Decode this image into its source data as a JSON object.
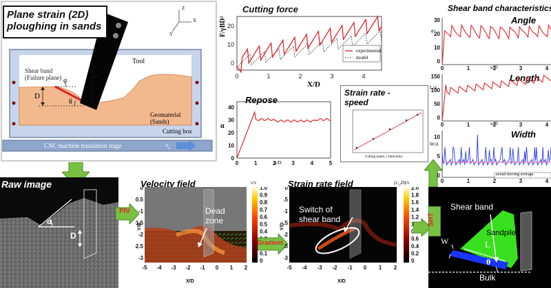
{
  "schematic": {
    "title_line1": "Plane strain (2D)",
    "title_line2": "ploughing in sands",
    "shear_band_label1": "Shear band",
    "shear_band_label2": "(Failure plane)",
    "alpha": "α",
    "beta": "β",
    "theta": "θ",
    "depth": "D",
    "tool": "Tool",
    "geomaterial1": "Geomaterial",
    "geomaterial2": "(Sands)",
    "cutting_box": "Cutting box",
    "stage": "CNC machine translation stage",
    "velocity": "v",
    "velocity_sub": "c",
    "axis_z": "Z",
    "axis_x": "X",
    "axis_y": "Y"
  },
  "cutting_force": {
    "title": "Cutting force",
    "ylabel": "F/γBD²",
    "xlabel": "X/D",
    "legend": [
      "experimental",
      "model"
    ],
    "yticks": [
      "0",
      "10",
      "20"
    ],
    "xticks": [
      "0",
      "1",
      "2",
      "3",
      "4"
    ]
  },
  "repose": {
    "title": "Repose",
    "ylabel": "α",
    "xlabel": "u/D",
    "yticks": [
      "0",
      "10",
      "20",
      "30",
      "40"
    ],
    "xticks": [
      "0",
      "1",
      "2",
      "3",
      "4",
      "5"
    ]
  },
  "strain_speed": {
    "title_line1": "Strain rate -",
    "title_line2": "speed",
    "xlabel": "Cutting speed, v (mm/min)"
  },
  "shear_band": {
    "title": "Shear band characteristics",
    "angle": "Angle",
    "length": "Length",
    "width": "Width",
    "angle_ylabel": "θ°",
    "length_ylabel": "L/d",
    "width_ylabel": "W/d",
    "xlabel": "u/D",
    "angle_yticks": [
      "30",
      "20",
      "10",
      "0"
    ],
    "length_yticks": [
      "150",
      "100",
      "50",
      "0"
    ],
    "width_yticks": [
      "10",
      "5",
      "0"
    ],
    "xticks": [
      "0",
      "1",
      "2",
      "3",
      "4"
    ],
    "legend": "actual  moving average"
  },
  "raw_image": {
    "title": "Raw image",
    "alpha": "α",
    "depth": "D"
  },
  "piv_label": "PIV",
  "velocity_field": {
    "title": "Velocity field",
    "annotation_line1": "Dead",
    "annotation_line2": "zone",
    "xlabel": "X/D",
    "ylabel": "Y/D",
    "colorbar_label": "v/v",
    "colorbar_ticks": [
      "1.0",
      "0.9",
      "0.8",
      "0.7",
      "0.6",
      "0.5",
      "0.4",
      "0.3",
      "0.2",
      "0.1",
      "0"
    ],
    "xticks": [
      "-5",
      "-4",
      "-3",
      "-2",
      "-1",
      "0",
      "1",
      "2"
    ],
    "yticks": [
      "0",
      "-0.5",
      "-1",
      "-1.5",
      "-2",
      "-2.5",
      "-3"
    ]
  },
  "gradient_label": "Gradient",
  "strain_rate_field": {
    "title": "Strain rate field",
    "annotation_line1": "Switch of",
    "annotation_line2": "shear band",
    "xlabel": "X/D",
    "ylabel": "Y/D",
    "colorbar_label": "(ε̇₁₂D)/v",
    "colorbar_ticks": [
      "2.0",
      "1.8",
      "1.6",
      "1.4",
      "1.2",
      "1.0",
      "0.8",
      "0.6",
      "0.4",
      "0.2",
      "0"
    ],
    "xticks": [
      "-5",
      "-4",
      "-3",
      "-2",
      "-1",
      "0",
      "1",
      "2"
    ],
    "yticks": [
      "0",
      "-0.5",
      "-1",
      "-1.5",
      "-2",
      "-2.5",
      "-3"
    ]
  },
  "sht_label": "SHT",
  "shear_band_schematic": {
    "shear_band": "Shear band",
    "sandpile": "Sandpile",
    "W": "W",
    "L": "L",
    "theta": "θ",
    "bulk": "Bulk"
  },
  "colors": {
    "arrow_green": "#79c142",
    "red_line": "#e0242a",
    "sand": "#f3b98e",
    "sandpile_green": "#39e01e",
    "shear_blue": "#1a35ff"
  }
}
